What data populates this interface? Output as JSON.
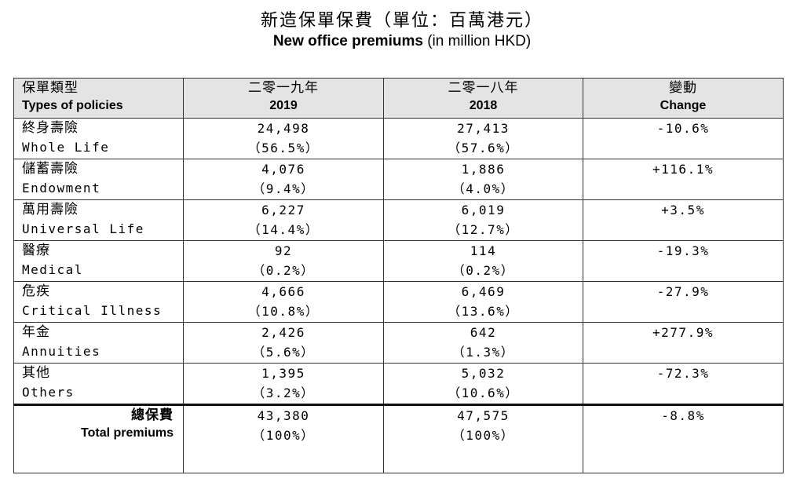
{
  "title": {
    "zh": "新造保單保費（單位：百萬港元）",
    "en_bold": "New office premiums",
    "en_rest": " (in million HKD)"
  },
  "header": {
    "col1_zh": "保單類型",
    "col1_en": "Types of policies",
    "col2_zh": "二零一九年",
    "col2_en": "2019",
    "col3_zh": "二零一八年",
    "col3_en": "2018",
    "col4_zh": "變動",
    "col4_en": "Change"
  },
  "rows": [
    {
      "zh": "終身壽險",
      "en": "Whole Life",
      "v2019": "24,498",
      "p2019": "（56.5%）",
      "v2018": "27,413",
      "p2018": "（57.6%）",
      "change": "-10.6%"
    },
    {
      "zh": "儲蓄壽險",
      "en": "Endowment",
      "v2019": "4,076",
      "p2019": "（9.4%）",
      "v2018": "1,886",
      "p2018": "（4.0%）",
      "change": "+116.1%"
    },
    {
      "zh": "萬用壽險",
      "en": "Universal Life",
      "v2019": "6,227",
      "p2019": "（14.4%）",
      "v2018": "6,019",
      "p2018": "（12.7%）",
      "change": "+3.5%"
    },
    {
      "zh": "醫療",
      "en": "Medical",
      "v2019": "92",
      "p2019": "（0.2%）",
      "v2018": "114",
      "p2018": "（0.2%）",
      "change": "-19.3%"
    },
    {
      "zh": "危疾",
      "en": "Critical Illness",
      "v2019": "4,666",
      "p2019": "（10.8%）",
      "v2018": "6,469",
      "p2018": "（13.6%）",
      "change": "-27.9%"
    },
    {
      "zh": "年金",
      "en": "Annuities",
      "v2019": "2,426",
      "p2019": "（5.6%）",
      "v2018": "642",
      "p2018": "（1.3%）",
      "change": "+277.9%"
    },
    {
      "zh": "其他",
      "en": "Others",
      "v2019": "1,395",
      "p2019": "（3.2%）",
      "v2018": "5,032",
      "p2018": "（10.6%）",
      "change": "-72.3%"
    }
  ],
  "total": {
    "zh": "總保費",
    "en": "Total premiums",
    "v2019": "43,380",
    "p2019": "（100%）",
    "v2018": "47,575",
    "p2018": "（100%）",
    "change": "-8.8%"
  }
}
